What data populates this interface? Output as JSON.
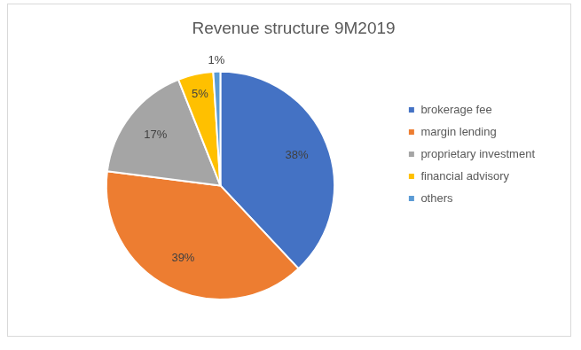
{
  "chart_data": {
    "type": "pie",
    "title": "Revenue structure 9M2019",
    "categories": [
      "brokerage fee",
      "margin lending",
      "proprietary investment",
      "financial advisory",
      "others"
    ],
    "values": [
      38,
      39,
      17,
      5,
      1
    ],
    "value_labels": [
      "38%",
      "39%",
      "17%",
      "5%",
      "1%"
    ],
    "colors": [
      "#4472c4",
      "#ed7d31",
      "#a5a5a5",
      "#ffc000",
      "#5b9bd5"
    ],
    "legend": "right",
    "data_labels": true
  }
}
